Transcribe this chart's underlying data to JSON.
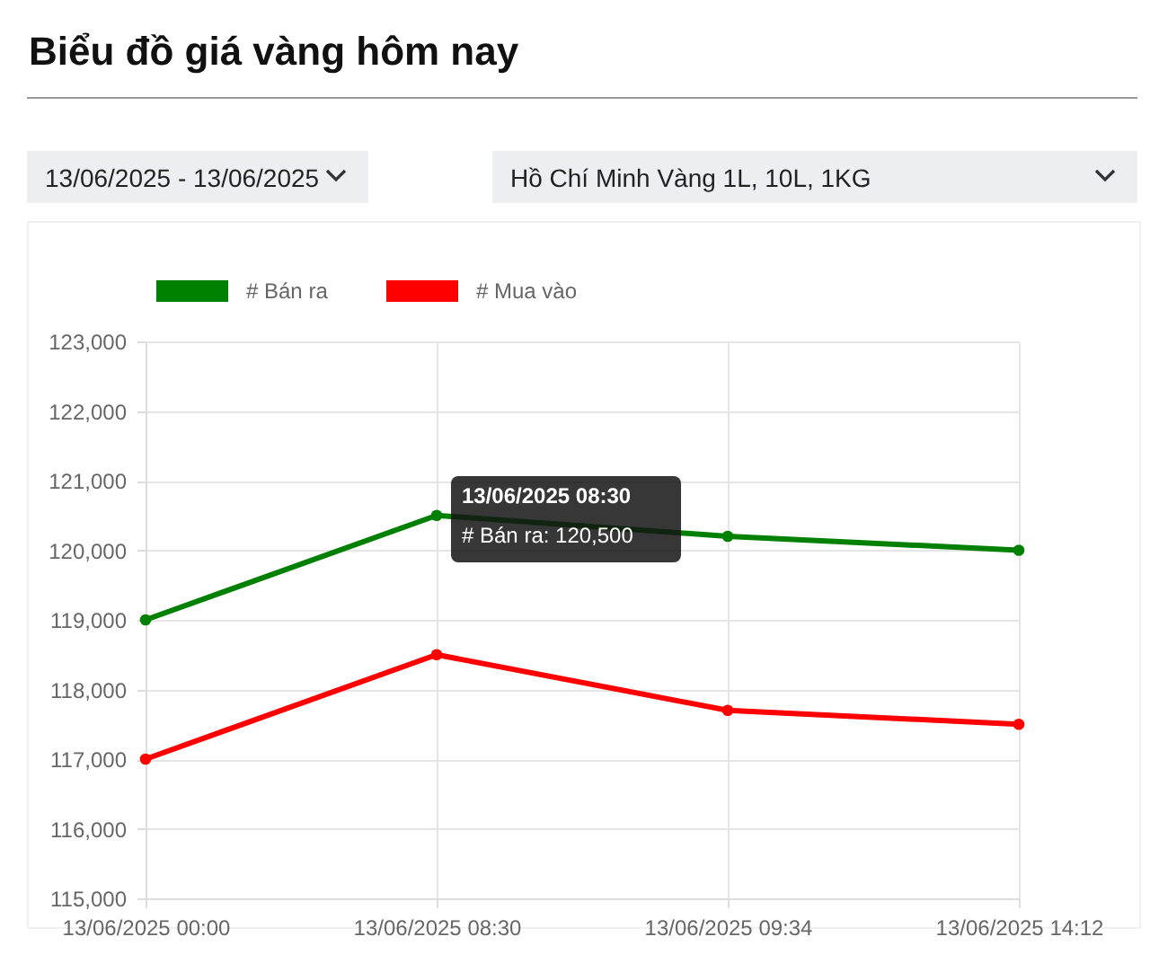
{
  "chart_data": {
    "type": "line",
    "title": "Biểu đồ giá vàng hôm nay",
    "categories": [
      "13/06/2025 00:00",
      "13/06/2025 08:30",
      "13/06/2025 09:34",
      "13/06/2025 14:12"
    ],
    "series": [
      {
        "name": "# Bán ra",
        "color": "#008000",
        "values": [
          119000,
          120500,
          120200,
          120000
        ]
      },
      {
        "name": "# Mua vào",
        "color": "#ff0000",
        "values": [
          117000,
          118500,
          117700,
          117500
        ]
      }
    ],
    "ylim": [
      115000,
      123000
    ],
    "yticks": [
      {
        "value": 115000,
        "label": "115,000"
      },
      {
        "value": 116000,
        "label": "116,000"
      },
      {
        "value": 117000,
        "label": "117,000"
      },
      {
        "value": 118000,
        "label": "118,000"
      },
      {
        "value": 119000,
        "label": "119,000"
      },
      {
        "value": 120000,
        "label": "120,000"
      },
      {
        "value": 121000,
        "label": "121,000"
      },
      {
        "value": 122000,
        "label": "122,000"
      },
      {
        "value": 123000,
        "label": "123,000"
      }
    ],
    "grid": true,
    "legend": "top",
    "marker": "circle",
    "annotations": [
      "13/06/2025 - 13/06/2025",
      "Hồ Chí Minh Vàng 1L, 10L, 1KG",
      {
        "text": "13/06/2025 08:30",
        "x": "13/06/2025 08:30",
        "y": 120500
      },
      {
        "text": "# Bán ra: 120,500",
        "x": "13/06/2025 08:30",
        "y": 120500
      }
    ]
  }
}
